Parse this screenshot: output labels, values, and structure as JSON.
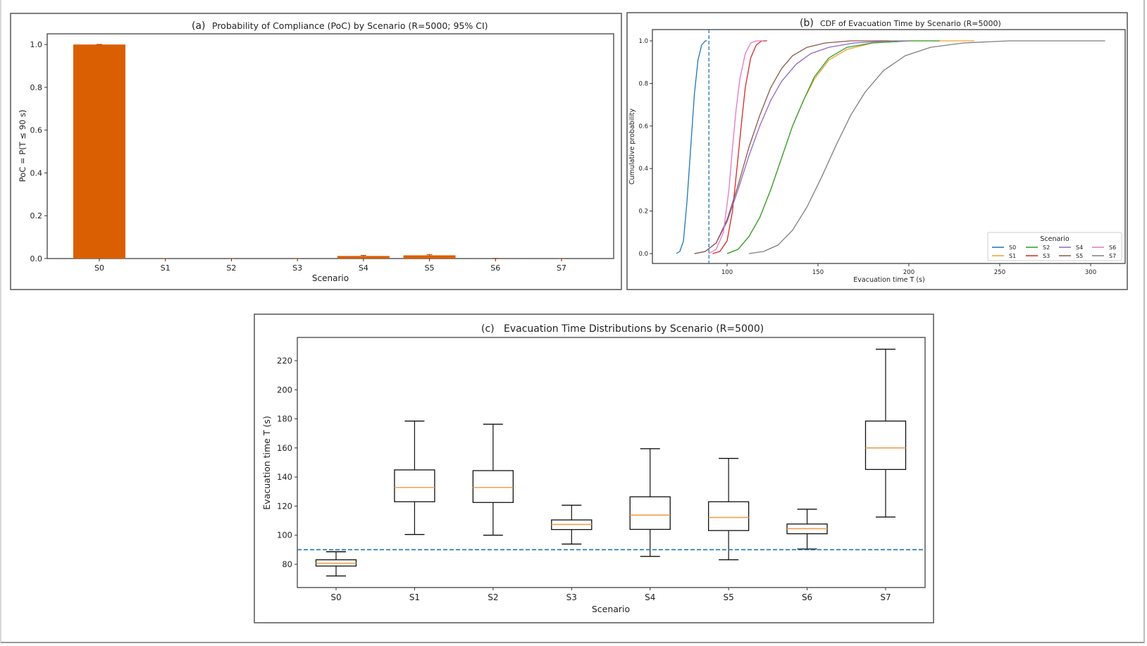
{
  "figure": {
    "threshold_s": 90,
    "colors": {
      "bar": "#d95f02",
      "threshold": "#1f77b4",
      "median": "#f0a04b",
      "box": "#111111"
    }
  },
  "chart_data": [
    {
      "id": "a",
      "type": "bar",
      "panel_label": "(a)",
      "title": "Probability of Compliance (PoC) by Scenario (R=5000; 95% CI)",
      "xlabel": "Scenario",
      "ylabel": "PoC = P(T ≤ 90 s)",
      "categories": [
        "S0",
        "S1",
        "S2",
        "S3",
        "S4",
        "S5",
        "S6",
        "S7"
      ],
      "values": [
        1.0,
        0.0,
        0.0,
        0.0,
        0.012,
        0.015,
        0.0002,
        0.0
      ],
      "ci_halfwidth": [
        0.0005,
        0.0005,
        0.0005,
        0.0005,
        0.003,
        0.0035,
        0.001,
        0.0005
      ],
      "yticks": [
        "0.0",
        "0.2",
        "0.4",
        "0.6",
        "0.8",
        "1.0"
      ],
      "ylim": [
        0,
        1.05
      ],
      "grid": false
    },
    {
      "id": "b",
      "type": "line",
      "panel_label": "(b)",
      "title": "CDF of Evacuation Time by Scenario (R=5000)",
      "xlabel": "Evacuation time T (s)",
      "ylabel": "Cumulative probability",
      "xticks": [
        "100",
        "150",
        "200",
        "250",
        "300"
      ],
      "yticks": [
        "0.0",
        "0.2",
        "0.4",
        "0.6",
        "0.8",
        "1.0"
      ],
      "xlim": [
        62,
        320
      ],
      "ylim": [
        -0.05,
        1.05
      ],
      "threshold_x": 90,
      "legend": {
        "title": "Scenario",
        "placement": "lower-right",
        "columns": 4
      },
      "series": [
        {
          "name": "S0",
          "color": "#1f77b4",
          "x": [
            72,
            74,
            76,
            78,
            80,
            82,
            84,
            86,
            88,
            89
          ],
          "y": [
            0.0,
            0.01,
            0.06,
            0.25,
            0.5,
            0.75,
            0.91,
            0.98,
            1.0,
            1.0
          ]
        },
        {
          "name": "S1",
          "color": "#f0a030",
          "x": [
            100,
            106,
            112,
            118,
            124,
            130,
            136,
            142,
            148,
            156,
            166,
            180,
            200,
            236
          ],
          "y": [
            0.0,
            0.02,
            0.08,
            0.17,
            0.3,
            0.45,
            0.6,
            0.72,
            0.82,
            0.91,
            0.96,
            0.99,
            1.0,
            1.0
          ]
        },
        {
          "name": "S2",
          "color": "#2ca02c",
          "x": [
            100,
            106,
            112,
            118,
            124,
            130,
            136,
            142,
            148,
            156,
            166,
            180,
            200,
            217
          ],
          "y": [
            0.0,
            0.02,
            0.08,
            0.17,
            0.3,
            0.45,
            0.6,
            0.72,
            0.83,
            0.92,
            0.97,
            0.99,
            1.0,
            1.0
          ]
        },
        {
          "name": "S3",
          "color": "#d62728",
          "x": [
            92,
            96,
            100,
            103,
            106,
            108,
            110,
            113,
            116,
            119,
            122
          ],
          "y": [
            0.0,
            0.01,
            0.06,
            0.2,
            0.45,
            0.62,
            0.78,
            0.92,
            0.98,
            1.0,
            1.0
          ]
        },
        {
          "name": "S4",
          "color": "#9467bd",
          "x": [
            82,
            88,
            94,
            100,
            106,
            112,
            118,
            124,
            130,
            138,
            146,
            156,
            170,
            190,
            200
          ],
          "y": [
            0.0,
            0.01,
            0.05,
            0.15,
            0.3,
            0.46,
            0.6,
            0.72,
            0.81,
            0.89,
            0.94,
            0.97,
            0.99,
            1.0,
            1.0
          ]
        },
        {
          "name": "S5",
          "color": "#8c564b",
          "x": [
            82,
            88,
            94,
            100,
            106,
            112,
            118,
            124,
            130,
            136,
            144,
            154,
            168,
            190
          ],
          "y": [
            0.0,
            0.01,
            0.05,
            0.16,
            0.32,
            0.5,
            0.65,
            0.78,
            0.87,
            0.93,
            0.97,
            0.99,
            1.0,
            1.0
          ]
        },
        {
          "name": "S6",
          "color": "#e377c2",
          "x": [
            90,
            94,
            98,
            101,
            103,
            105,
            107,
            110,
            113,
            116,
            120
          ],
          "y": [
            0.0,
            0.02,
            0.1,
            0.3,
            0.5,
            0.68,
            0.82,
            0.94,
            0.99,
            1.0,
            1.0
          ]
        },
        {
          "name": "S7",
          "color": "#7f7f7f",
          "x": [
            112,
            120,
            128,
            136,
            144,
            152,
            160,
            168,
            176,
            186,
            198,
            212,
            230,
            255,
            280,
            308
          ],
          "y": [
            0.0,
            0.01,
            0.04,
            0.11,
            0.22,
            0.36,
            0.51,
            0.65,
            0.76,
            0.86,
            0.93,
            0.97,
            0.99,
            1.0,
            1.0,
            1.0
          ]
        }
      ],
      "grid": false
    },
    {
      "id": "c",
      "type": "box",
      "panel_label": "(c)",
      "title": "Evacuation Time Distributions by Scenario (R=5000)",
      "xlabel": "Scenario",
      "ylabel": "Evacuation time T (s)",
      "yticks": [
        "80",
        "100",
        "120",
        "140",
        "160",
        "180",
        "200",
        "220"
      ],
      "ylim": [
        64,
        232
      ],
      "threshold_y": 90,
      "categories": [
        "S0",
        "S1",
        "S2",
        "S3",
        "S4",
        "S5",
        "S6",
        "S7"
      ],
      "boxes": [
        {
          "whisker_low": 72.0,
          "q1": 78.8,
          "median": 80.7,
          "q3": 83.1,
          "whisker_high": 88.6
        },
        {
          "whisker_low": 100.5,
          "q1": 123.0,
          "median": 132.8,
          "q3": 144.9,
          "whisker_high": 178.5
        },
        {
          "whisker_low": 100.0,
          "q1": 122.5,
          "median": 132.8,
          "q3": 144.4,
          "whisker_high": 176.3
        },
        {
          "whisker_low": 93.9,
          "q1": 103.9,
          "median": 107.4,
          "q3": 110.5,
          "whisker_high": 120.6
        },
        {
          "whisker_low": 85.4,
          "q1": 104.0,
          "median": 113.8,
          "q3": 126.4,
          "whisker_high": 159.5
        },
        {
          "whisker_low": 83.1,
          "q1": 103.2,
          "median": 112.2,
          "q3": 123.0,
          "whisker_high": 152.8
        },
        {
          "whisker_low": 90.5,
          "q1": 101.0,
          "median": 104.5,
          "q3": 107.7,
          "whisker_high": 117.9
        },
        {
          "whisker_low": 112.5,
          "q1": 145.2,
          "median": 160.0,
          "q3": 178.5,
          "whisker_high": 227.9
        }
      ],
      "grid": false
    }
  ]
}
